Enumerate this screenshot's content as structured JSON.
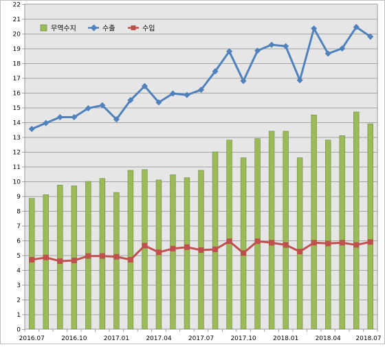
{
  "chart_data": {
    "type": "bar",
    "title": "",
    "xlabel": "",
    "ylabel": "",
    "ylim": [
      0,
      22
    ],
    "y_ticks": [
      0,
      1,
      2,
      3,
      4,
      5,
      6,
      7,
      8,
      9,
      10,
      11,
      12,
      13,
      14,
      15,
      16,
      17,
      18,
      19,
      20,
      21,
      22
    ],
    "grid": true,
    "legend_placement": "top-left",
    "categories": [
      "2016.07",
      "2016.08",
      "2016.09",
      "2016.10",
      "2016.11",
      "2016.12",
      "2017.01",
      "2017.02",
      "2017.03",
      "2017.04",
      "2017.05",
      "2017.06",
      "2017.07",
      "2017.08",
      "2017.09",
      "2017.10",
      "2017.11",
      "2017.12",
      "2018.01",
      "2018.02",
      "2018.03",
      "2018.04",
      "2018.05",
      "2018.06",
      "2018.07"
    ],
    "x_tick_labels": [
      {
        "index": 0,
        "label": "2016.07"
      },
      {
        "index": 3,
        "label": "2016.10"
      },
      {
        "index": 6,
        "label": "2017.01"
      },
      {
        "index": 9,
        "label": "2017.04"
      },
      {
        "index": 12,
        "label": "2017.07"
      },
      {
        "index": 15,
        "label": "2017.10"
      },
      {
        "index": 18,
        "label": "2018.01"
      },
      {
        "index": 21,
        "label": "2018.04"
      },
      {
        "index": 24,
        "label": "2018.07"
      }
    ],
    "series": [
      {
        "name": "무역수지",
        "kind": "bar",
        "color": "#9bbb59",
        "values": [
          8.85,
          9.1,
          9.75,
          9.7,
          10.0,
          10.2,
          9.25,
          10.75,
          10.8,
          10.1,
          10.45,
          10.25,
          10.75,
          12.0,
          12.8,
          11.6,
          12.9,
          13.4,
          13.4,
          11.6,
          14.5,
          12.8,
          13.1,
          14.7,
          13.9
        ]
      },
      {
        "name": "수출",
        "kind": "line",
        "color": "#4f81bd",
        "values": [
          13.55,
          13.95,
          14.35,
          14.35,
          14.95,
          15.15,
          14.2,
          15.5,
          16.45,
          15.35,
          15.95,
          15.85,
          16.2,
          17.45,
          18.8,
          16.8,
          18.85,
          19.25,
          19.15,
          16.85,
          20.35,
          18.65,
          19.0,
          20.45,
          19.8
        ]
      },
      {
        "name": "수입",
        "kind": "line",
        "color": "#c0504d",
        "values": [
          4.7,
          4.85,
          4.6,
          4.65,
          4.95,
          4.95,
          4.9,
          4.7,
          5.65,
          5.2,
          5.45,
          5.55,
          5.35,
          5.4,
          5.95,
          5.15,
          5.95,
          5.85,
          5.7,
          5.25,
          5.85,
          5.8,
          5.85,
          5.7,
          5.9
        ]
      }
    ]
  }
}
